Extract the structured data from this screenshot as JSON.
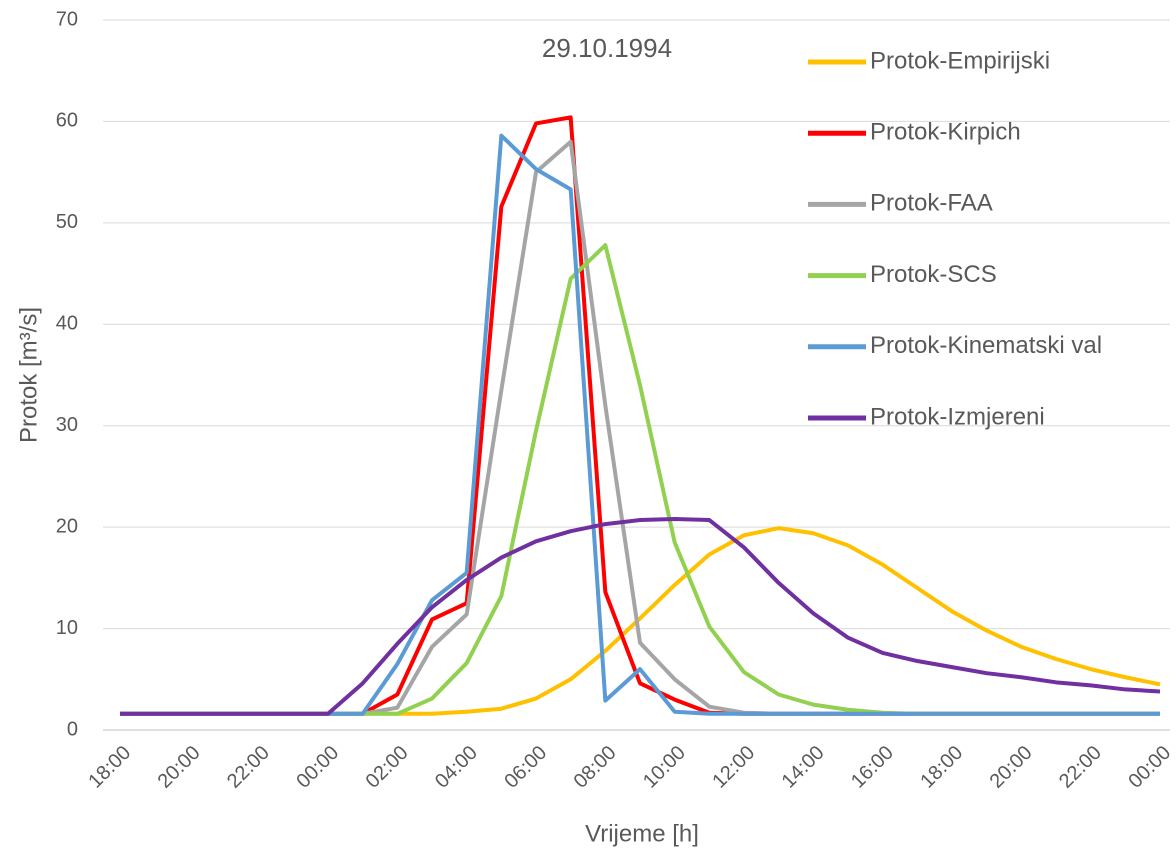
{
  "chart_data": {
    "type": "line",
    "title": "29.10.1994",
    "x_label": "Vrijeme [h]",
    "y_label": "Protok [m³/s]",
    "categories": [
      "18:00",
      null,
      "20:00",
      null,
      "22:00",
      null,
      "00:00",
      null,
      "02:00",
      null,
      "04:00",
      null,
      "06:00",
      null,
      "08:00",
      null,
      "10:00",
      null,
      "12:00",
      null,
      "14:00",
      null,
      "16:00",
      null,
      "18:00",
      null,
      "20:00",
      null,
      "22:00",
      null,
      "00:00"
    ],
    "ylim": [
      0,
      70
    ],
    "yticks": [
      0,
      10,
      20,
      30,
      40,
      50,
      60,
      70
    ],
    "grid": true,
    "legend": "right",
    "series": [
      {
        "name": "Protok-Empirijski",
        "color": "#ffc000",
        "values": [
          1.6,
          1.6,
          1.6,
          1.6,
          1.6,
          1.6,
          1.6,
          1.6,
          1.6,
          1.6,
          1.8,
          2.1,
          3.1,
          5.0,
          7.8,
          11.0,
          14.3,
          17.3,
          19.2,
          19.9,
          19.4,
          18.2,
          16.3,
          14.0,
          11.7,
          9.8,
          8.2,
          7.0,
          6.0,
          5.2,
          4.5
        ]
      },
      {
        "name": "Protok-Kirpich",
        "color": "#ff0000",
        "values": [
          1.6,
          1.6,
          1.6,
          1.6,
          1.6,
          1.6,
          1.6,
          1.6,
          3.5,
          10.9,
          12.5,
          51.6,
          59.8,
          60.4,
          13.6,
          4.6,
          3.0,
          1.7,
          1.6,
          1.6,
          1.6,
          1.6,
          1.6,
          1.6,
          1.6,
          1.6,
          1.6,
          1.6,
          1.6,
          1.6,
          1.6
        ]
      },
      {
        "name": "Protok-FAA",
        "color": "#a5a5a5",
        "values": [
          1.6,
          1.6,
          1.6,
          1.6,
          1.6,
          1.6,
          1.6,
          1.6,
          2.2,
          8.2,
          11.4,
          33.5,
          55.0,
          58.0,
          32.0,
          8.6,
          5.0,
          2.3,
          1.7,
          1.6,
          1.6,
          1.6,
          1.6,
          1.6,
          1.6,
          1.6,
          1.6,
          1.6,
          1.6,
          1.6,
          1.6
        ]
      },
      {
        "name": "Protok-SCS",
        "color": "#92d050",
        "values": [
          1.6,
          1.6,
          1.6,
          1.6,
          1.6,
          1.6,
          1.6,
          1.6,
          1.6,
          3.1,
          6.6,
          13.2,
          29.5,
          44.5,
          47.8,
          34.0,
          18.5,
          10.2,
          5.7,
          3.5,
          2.5,
          2.0,
          1.7,
          1.6,
          1.6,
          1.6,
          1.6,
          1.6,
          1.6,
          1.6,
          1.6
        ]
      },
      {
        "name": "Protok-Kinematski val",
        "color": "#5b9bd5",
        "values": [
          1.6,
          1.6,
          1.6,
          1.6,
          1.6,
          1.6,
          1.6,
          1.6,
          6.5,
          12.8,
          15.5,
          58.6,
          55.3,
          53.3,
          2.9,
          6.0,
          1.8,
          1.6,
          1.6,
          1.6,
          1.6,
          1.6,
          1.6,
          1.6,
          1.6,
          1.6,
          1.6,
          1.6,
          1.6,
          1.6,
          1.6
        ]
      },
      {
        "name": "Protok-Izmjereni",
        "color": "#7030a0",
        "values": [
          1.6,
          1.6,
          1.6,
          1.6,
          1.6,
          1.6,
          1.6,
          4.6,
          8.5,
          12.1,
          14.8,
          17.0,
          18.6,
          19.6,
          20.3,
          20.7,
          20.8,
          20.7,
          18.0,
          14.5,
          11.5,
          9.1,
          7.6,
          6.8,
          6.2,
          5.6,
          5.2,
          4.7,
          4.4,
          4.0,
          3.8
        ]
      }
    ]
  }
}
